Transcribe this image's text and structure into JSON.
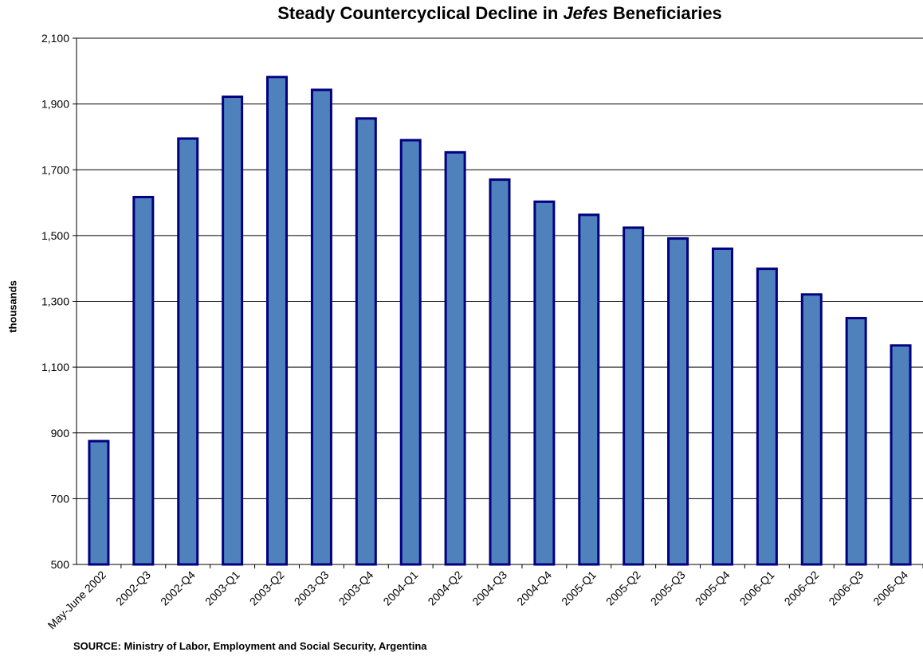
{
  "chart_data": {
    "type": "bar",
    "title_parts": [
      "Steady Countercyclical Decline in ",
      "Jefes",
      " Beneficiaries"
    ],
    "ylabel": "thousands",
    "xlabel": "",
    "ylim": [
      500,
      2100
    ],
    "yticks": [
      500,
      700,
      900,
      1100,
      1300,
      1500,
      1700,
      1900,
      2100
    ],
    "ytick_labels": [
      "500",
      "700",
      "900",
      "1,100",
      "1,300",
      "1,500",
      "1,700",
      "1,900",
      "2,100"
    ],
    "categories": [
      "May-June 2002",
      "2002-Q3",
      "2002-Q4",
      "2003-Q1",
      "2003-Q2",
      "2003-Q3",
      "2003-Q4",
      "2004-Q1",
      "2004-Q2",
      "2004-Q3",
      "2004-Q4",
      "2005-Q1",
      "2005-Q2",
      "2005-Q3",
      "2005-Q4",
      "2006-Q1",
      "2006-Q2",
      "2006-Q3",
      "2006-Q4"
    ],
    "values": [
      875,
      1617,
      1795,
      1922,
      1982,
      1943,
      1856,
      1790,
      1753,
      1670,
      1603,
      1563,
      1524,
      1491,
      1460,
      1399,
      1321,
      1249,
      1166
    ],
    "grid": true,
    "legend": "none",
    "bar_color": "#4f81bd",
    "bar_edge_color": "#000080"
  },
  "source_note": "SOURCE: Ministry of Labor, Employment and Social Security, Argentina"
}
